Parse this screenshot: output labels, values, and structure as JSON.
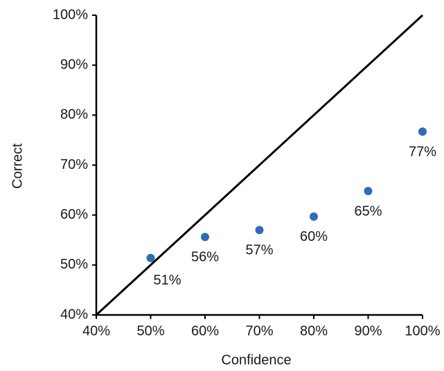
{
  "chart_data": {
    "type": "scatter",
    "x_label": "Confidence",
    "y_label": "Correct",
    "x": [
      50,
      60,
      70,
      80,
      90,
      100
    ],
    "series": [
      {
        "color": "#2e6db4",
        "values": [
          51.4,
          55.6,
          57.0,
          59.7,
          64.8,
          76.7
        ],
        "value_labels": [
          "51%",
          "56%",
          "57%",
          "60%",
          "65%",
          "77%"
        ]
      }
    ],
    "reference_line": {
      "x": [
        40,
        100
      ],
      "y": [
        40,
        100
      ],
      "color": "#000000"
    },
    "xlim": [
      40,
      100
    ],
    "ylim": [
      40,
      100
    ],
    "xticks": [
      {
        "value": 40,
        "label": "40%"
      },
      {
        "value": 50,
        "label": "50%"
      },
      {
        "value": 60,
        "label": "60%"
      },
      {
        "value": 70,
        "label": "70%"
      },
      {
        "value": 80,
        "label": "80%"
      },
      {
        "value": 90,
        "label": "90%"
      },
      {
        "value": 100,
        "label": "100%"
      }
    ],
    "yticks": [
      {
        "value": 40,
        "label": "40%"
      },
      {
        "value": 50,
        "label": "50%"
      },
      {
        "value": 60,
        "label": "60%"
      },
      {
        "value": 70,
        "label": "70%"
      },
      {
        "value": 80,
        "label": "80%"
      },
      {
        "value": 90,
        "label": "90%"
      },
      {
        "value": 100,
        "label": "100%"
      }
    ],
    "grid": false
  }
}
